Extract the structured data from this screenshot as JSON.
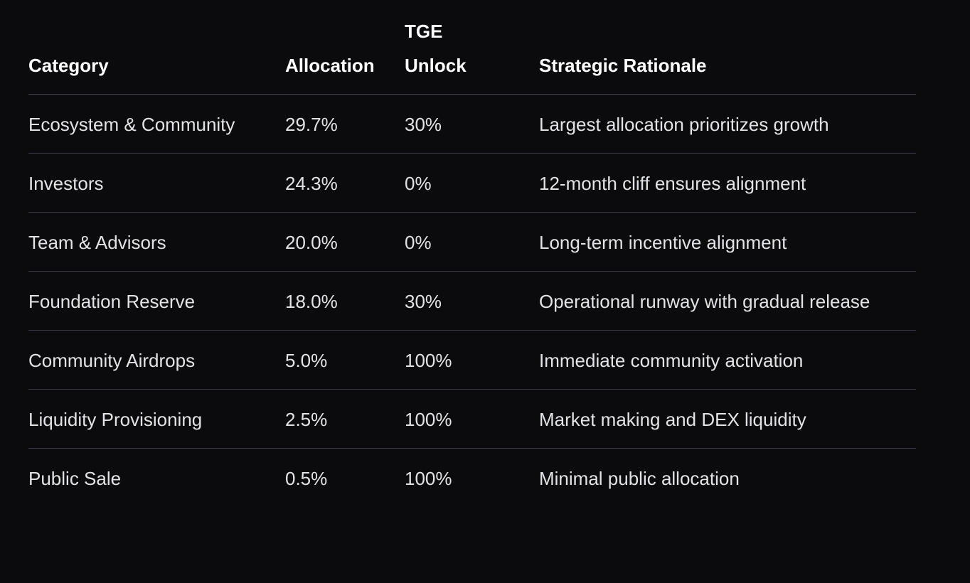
{
  "table": {
    "header": [
      "Category",
      "Allocation",
      "TGE Unlock",
      "Strategic Rationale"
    ],
    "rows": [
      [
        "Ecosystem & Community",
        "29.7%",
        "30%",
        "Largest allocation prioritizes growth"
      ],
      [
        "Investors",
        "24.3%",
        "0%",
        "12-month cliff ensures alignment"
      ],
      [
        "Team & Advisors",
        "20.0%",
        "0%",
        "Long-term incentive alignment"
      ],
      [
        "Foundation Reserve",
        "18.0%",
        "30%",
        "Operational runway with gradual release"
      ],
      [
        "Community Airdrops",
        "5.0%",
        "100%",
        "Immediate community activation"
      ],
      [
        "Liquidity Provisioning",
        "2.5%",
        "100%",
        "Market making and DEX liquidity"
      ],
      [
        "Public Sale",
        "0.5%",
        "100%",
        "Minimal public allocation"
      ]
    ]
  }
}
